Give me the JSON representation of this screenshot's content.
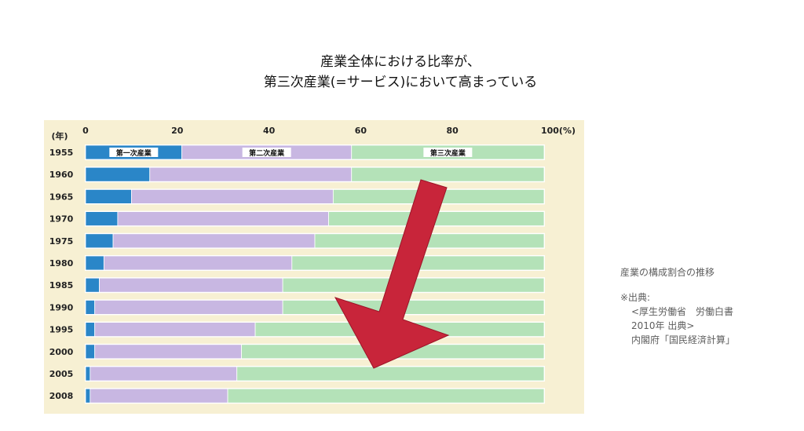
{
  "heading": {
    "line1": "産業全体における比率が、",
    "line2": "第三次産業(=サービス)において高まっている"
  },
  "chart_data": {
    "type": "bar",
    "stacked": true,
    "orientation": "horizontal",
    "year_unit_label": "(年)",
    "x_tick_labels": [
      "0",
      "20",
      "40",
      "60",
      "80",
      "100(%)"
    ],
    "xlim": [
      0,
      100
    ],
    "categories": [
      "1955",
      "1960",
      "1965",
      "1970",
      "1975",
      "1980",
      "1985",
      "1990",
      "1995",
      "2000",
      "2005",
      "2008"
    ],
    "series": [
      {
        "name": "第一次産業",
        "color": "#2a86c8",
        "values": [
          21,
          14,
          10,
          7,
          6,
          4,
          3,
          2,
          2,
          2,
          1,
          1
        ]
      },
      {
        "name": "第二次産業",
        "color": "#c8b7e2",
        "values": [
          37,
          44,
          44,
          46,
          44,
          41,
          40,
          41,
          35,
          32,
          32,
          30
        ]
      },
      {
        "name": "第三次産業",
        "color": "#b4e2b8",
        "values": [
          42,
          42,
          46,
          47,
          50,
          55,
          57,
          57,
          63,
          66,
          67,
          69
        ]
      }
    ],
    "inbar_labels": [
      "第一次産業",
      "第二次産業",
      "第三次産業"
    ],
    "annotation": {
      "type": "arrow",
      "color": "#c8253a",
      "direction": "down-left"
    }
  },
  "caption": {
    "title": "産業の構成割合の推移",
    "source_label": "※出典:",
    "source_line1": "<厚生労働省　労働白書",
    "source_line2": "2010年 出典>",
    "source_line3": "内閣府「国民経済計算」"
  }
}
